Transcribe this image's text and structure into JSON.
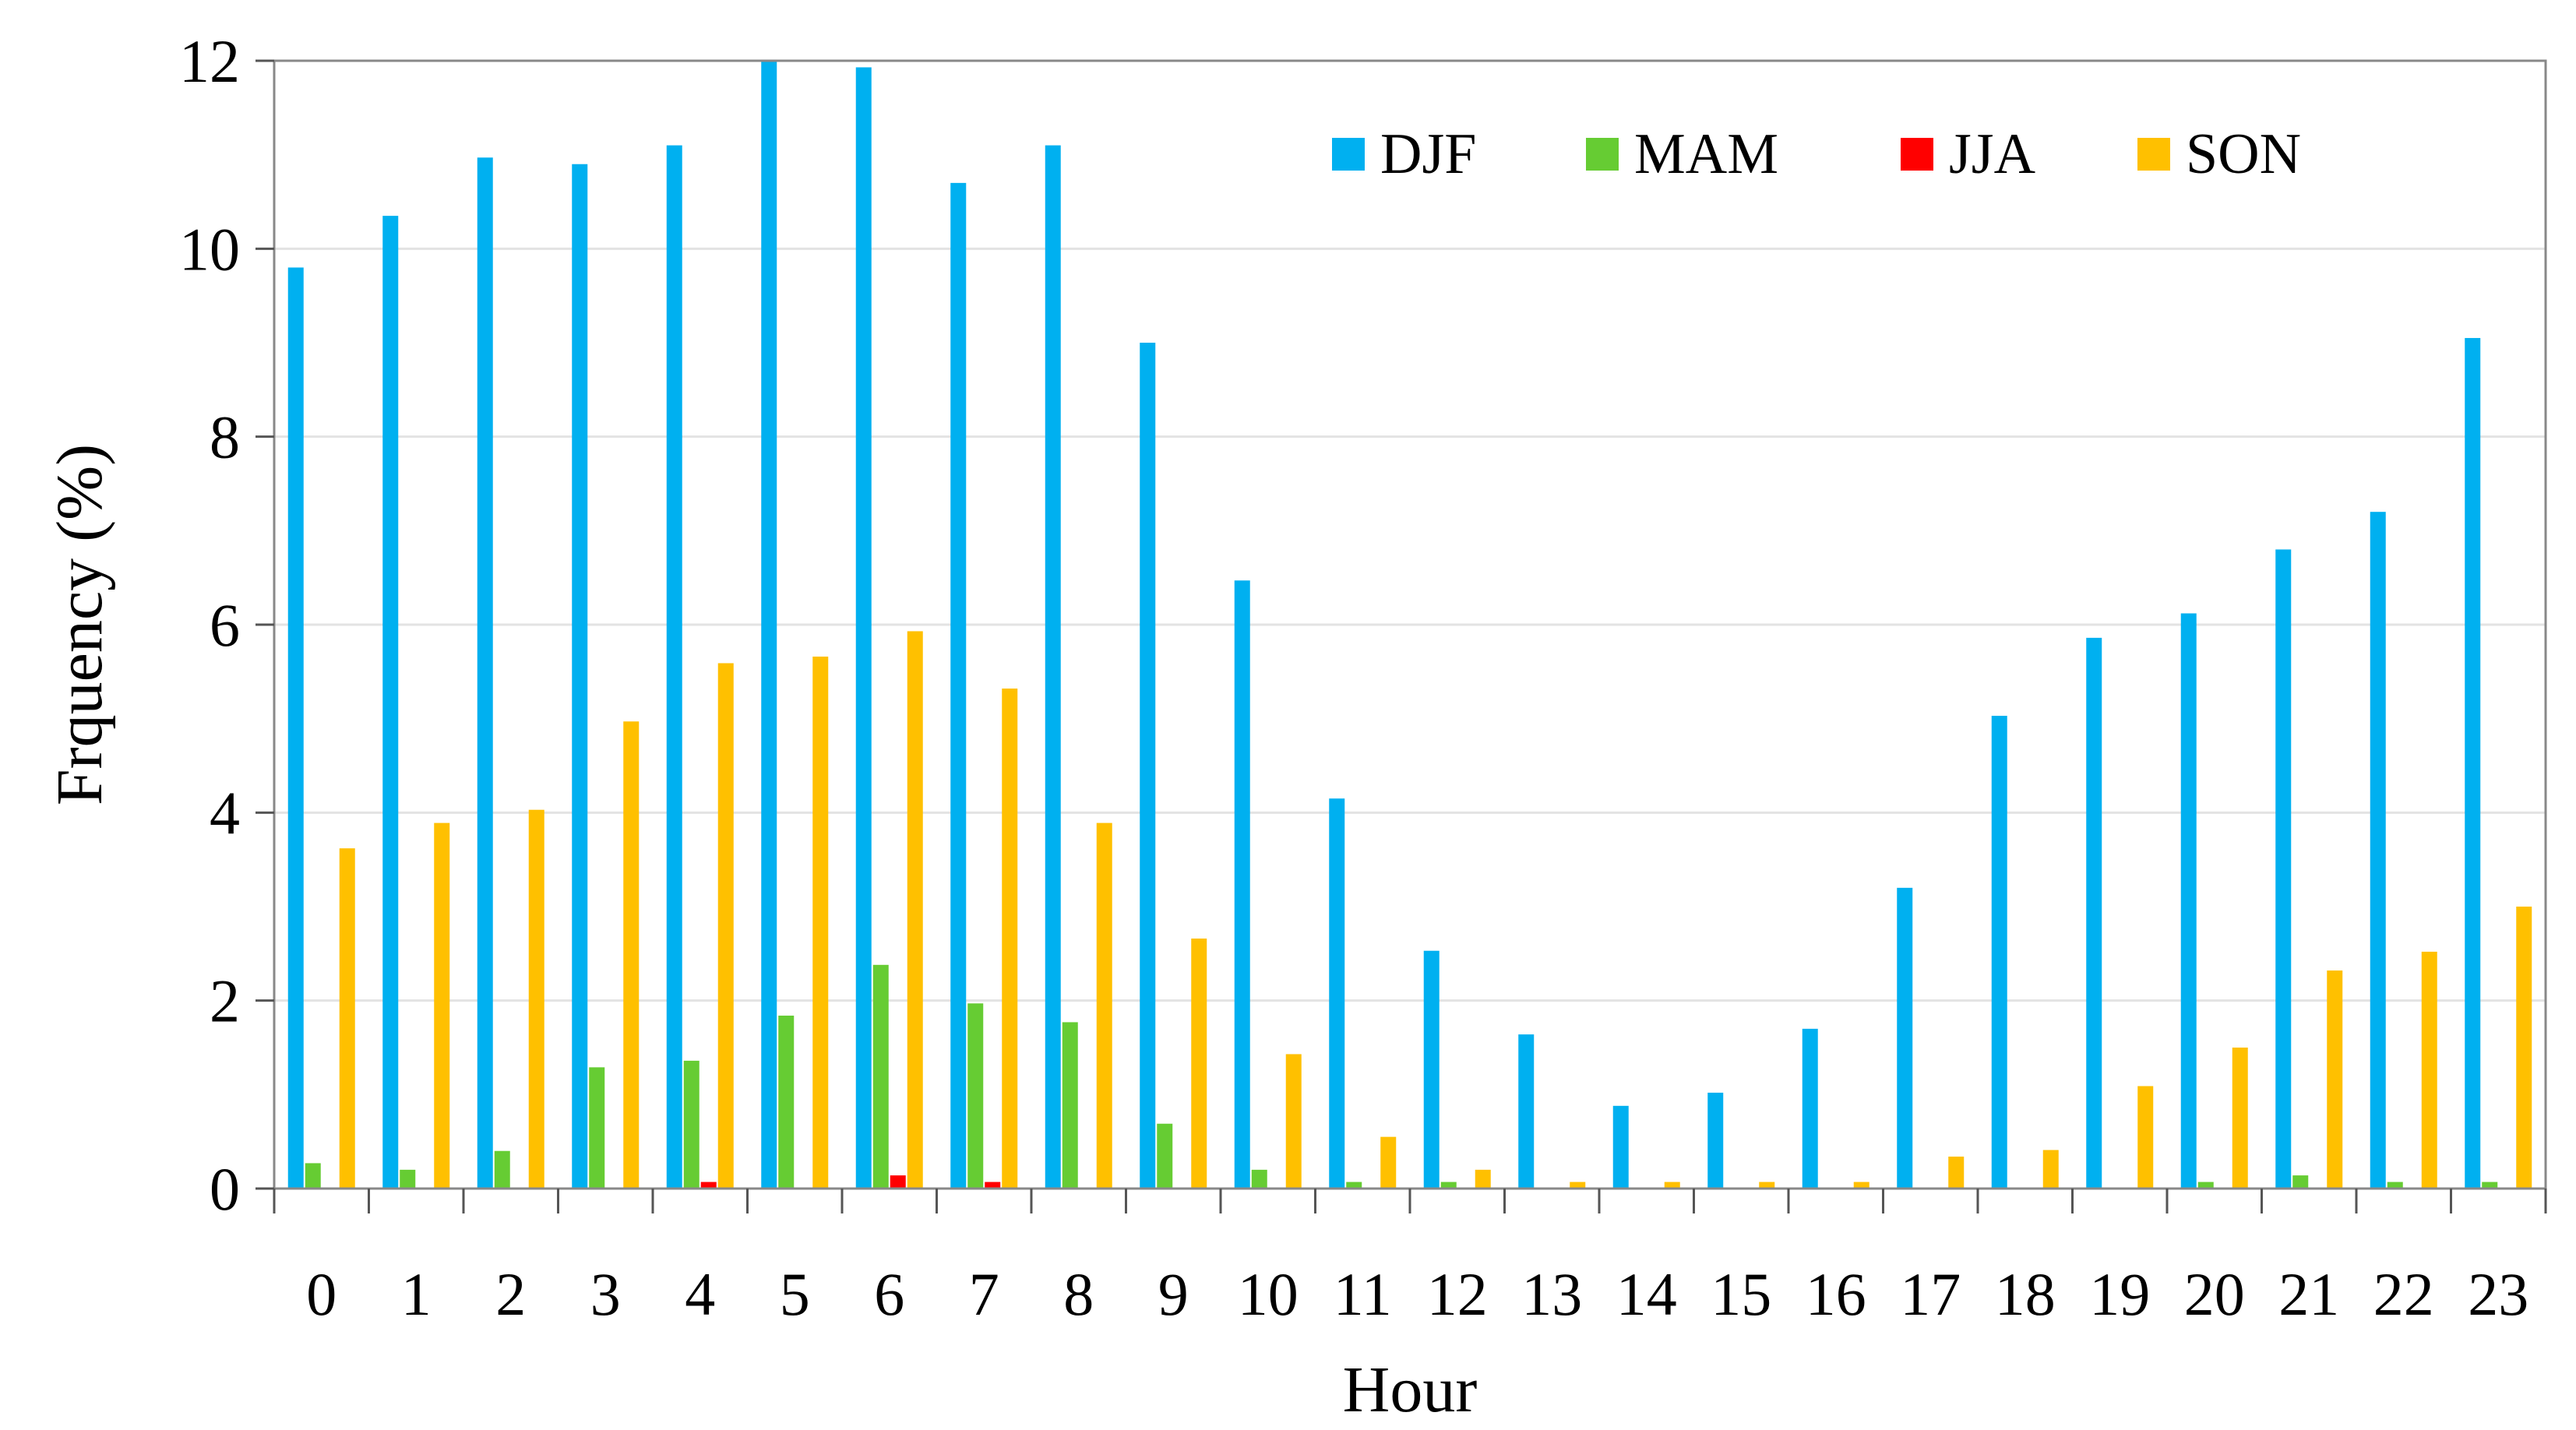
{
  "chart_data": {
    "type": "bar",
    "title": "",
    "xlabel": "Hour",
    "ylabel": "Frquency (%)",
    "ylim": [
      0,
      12
    ],
    "yticks": [
      "0",
      "2",
      "4",
      "6",
      "8",
      "10",
      "12"
    ],
    "grid": true,
    "legend_position": "top-right",
    "categories": [
      "0",
      "1",
      "2",
      "3",
      "4",
      "5",
      "6",
      "7",
      "8",
      "9",
      "10",
      "11",
      "12",
      "13",
      "14",
      "15",
      "16",
      "17",
      "18",
      "19",
      "20",
      "21",
      "22",
      "23"
    ],
    "series": [
      {
        "name": "DJF",
        "color": "#00B0F0",
        "values": [
          9.8,
          10.35,
          10.97,
          10.9,
          11.1,
          12.0,
          11.93,
          10.7,
          11.1,
          9.0,
          6.47,
          4.15,
          2.53,
          1.64,
          0.88,
          1.02,
          1.7,
          3.2,
          5.03,
          5.86,
          6.12,
          6.8,
          7.2,
          9.05
        ]
      },
      {
        "name": "MAM",
        "color": "#66CC33",
        "values": [
          0.27,
          0.2,
          0.4,
          1.29,
          1.36,
          1.84,
          2.38,
          1.97,
          1.77,
          0.69,
          0.2,
          0.07,
          0.07,
          0,
          0,
          0,
          0,
          0,
          0,
          0,
          0.07,
          0.14,
          0.07,
          0.07
        ]
      },
      {
        "name": "JJA",
        "color": "#FF0000",
        "values": [
          0,
          0,
          0,
          0,
          0.07,
          0,
          0.14,
          0.07,
          0,
          0,
          0,
          0,
          0,
          0,
          0,
          0,
          0,
          0,
          0,
          0,
          0,
          0,
          0,
          0
        ]
      },
      {
        "name": "SON",
        "color": "#FFC000",
        "values": [
          3.62,
          3.89,
          4.03,
          4.97,
          5.59,
          5.66,
          5.93,
          5.32,
          3.89,
          2.66,
          1.43,
          0.55,
          0.2,
          0.07,
          0.07,
          0.07,
          0.07,
          0.34,
          0.41,
          1.09,
          1.5,
          2.32,
          2.52,
          3.0
        ]
      }
    ]
  }
}
